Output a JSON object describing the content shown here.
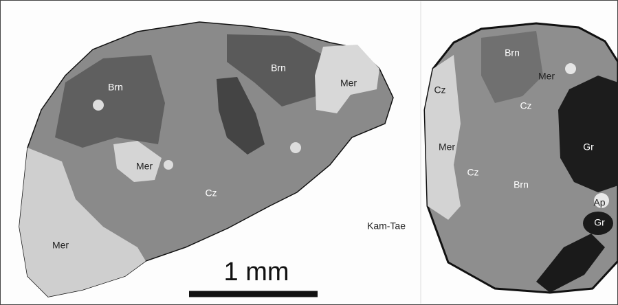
{
  "left_grain": {
    "labels": [
      "Brn",
      "Brn",
      "Mer",
      "Mer",
      "Cz",
      "Mer"
    ]
  },
  "right_grain": {
    "labels": [
      "Brn",
      "Mer",
      "Cz",
      "Cz",
      "Mer",
      "Cz",
      "Brn",
      "Gr",
      "Ap",
      "Gr"
    ]
  },
  "sample": "Kam-Tae",
  "scale_bar": "1 mm"
}
